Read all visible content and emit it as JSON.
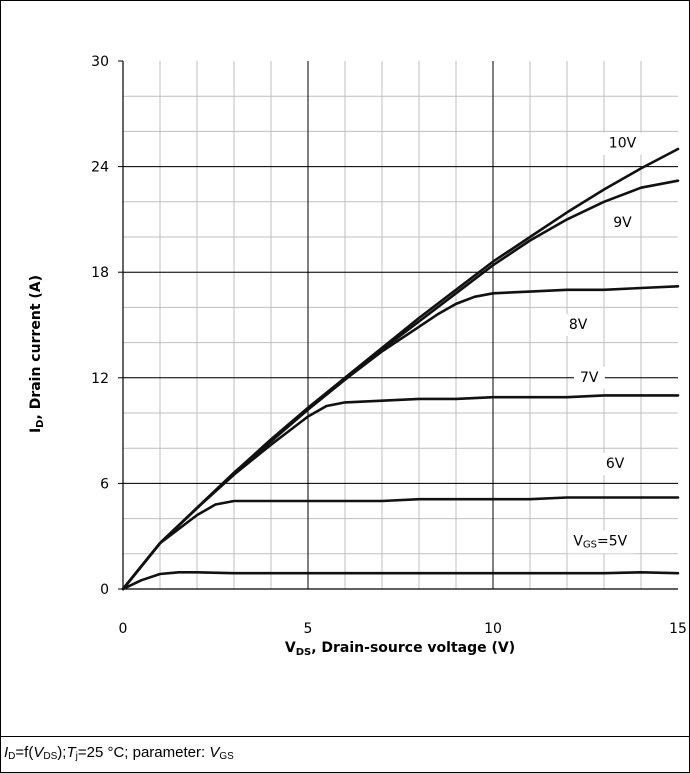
{
  "chart_data": {
    "type": "line",
    "xlabel": "V",
    "xlabel_sub": "DS",
    "xlabel_rest": ", Drain-source voltage (V)",
    "ylabel": "I",
    "ylabel_sub": "D",
    "ylabel_rest": ", Drain current (A)",
    "xlim": [
      0,
      15
    ],
    "ylim": [
      0,
      30
    ],
    "x_ticks": [
      0,
      5,
      10,
      15
    ],
    "y_ticks": [
      0,
      6,
      12,
      18,
      24,
      30
    ],
    "x_minor_step": 1,
    "y_minor_step": 2,
    "grid": true,
    "series": [
      {
        "name": "10V",
        "x": [
          0,
          1,
          2,
          3,
          4,
          5,
          6,
          7,
          8,
          9,
          10,
          11,
          12,
          13,
          14,
          15
        ],
        "y": [
          0,
          2.6,
          4.6,
          6.6,
          8.5,
          10.3,
          12.0,
          13.7,
          15.4,
          17.0,
          18.6,
          20.0,
          21.4,
          22.7,
          23.9,
          25.0
        ]
      },
      {
        "name": "9V",
        "x": [
          0,
          1,
          2,
          3,
          4,
          5,
          6,
          7,
          8,
          9,
          10,
          11,
          12,
          13,
          14,
          15
        ],
        "y": [
          0,
          2.6,
          4.6,
          6.6,
          8.4,
          10.2,
          11.9,
          13.6,
          15.2,
          16.8,
          18.4,
          19.8,
          21.0,
          22.0,
          22.8,
          23.2
        ]
      },
      {
        "name": "8V",
        "x": [
          0,
          1,
          2,
          3,
          4,
          5,
          6,
          7,
          8,
          8.5,
          9,
          9.5,
          10,
          11,
          12,
          13,
          14,
          15
        ],
        "y": [
          0,
          2.6,
          4.6,
          6.6,
          8.4,
          10.2,
          11.9,
          13.5,
          14.9,
          15.6,
          16.2,
          16.6,
          16.8,
          16.9,
          17.0,
          17.0,
          17.1,
          17.2
        ]
      },
      {
        "name": "7V",
        "x": [
          0,
          1,
          2,
          3,
          4,
          4.5,
          5,
          5.5,
          6,
          7,
          8,
          9,
          10,
          11,
          12,
          13,
          14,
          15
        ],
        "y": [
          0,
          2.6,
          4.6,
          6.5,
          8.2,
          9.0,
          9.8,
          10.4,
          10.6,
          10.7,
          10.8,
          10.8,
          10.9,
          10.9,
          10.9,
          11.0,
          11.0,
          11.0
        ]
      },
      {
        "name": "6V",
        "x": [
          0,
          1,
          2,
          2.5,
          3,
          3.5,
          4,
          5,
          6,
          7,
          8,
          9,
          10,
          11,
          12,
          13,
          14,
          15
        ],
        "y": [
          0,
          2.6,
          4.2,
          4.8,
          5.0,
          5.0,
          5.0,
          5.0,
          5.0,
          5.0,
          5.1,
          5.1,
          5.1,
          5.1,
          5.2,
          5.2,
          5.2,
          5.2
        ]
      },
      {
        "name": "VGS=5V",
        "x": [
          0,
          0.5,
          1,
          1.5,
          2,
          3,
          5,
          8,
          10,
          12,
          13,
          14,
          15
        ],
        "y": [
          0,
          0.5,
          0.85,
          0.95,
          0.95,
          0.9,
          0.9,
          0.9,
          0.9,
          0.9,
          0.9,
          0.95,
          0.9
        ]
      }
    ],
    "labels": [
      {
        "text": "10V",
        "x": 13.5,
        "y": 25.3
      },
      {
        "text": "9V",
        "x": 13.5,
        "y": 20.8
      },
      {
        "text": "8V",
        "x": 12.3,
        "y": 15.0
      },
      {
        "text": "7V",
        "x": 12.6,
        "y": 12.0
      },
      {
        "text": "6V",
        "x": 13.3,
        "y": 7.1
      },
      {
        "text": "VGS=5V",
        "x": 12.9,
        "y": 2.7
      }
    ]
  },
  "caption": {
    "i_letter": "I",
    "i_sub": "D",
    "eq1": "=f(",
    "v_letter": "V",
    "v_sub": "DS",
    "eq2": ");",
    "t_letter": "T",
    "t_sub": "j",
    "eq3": "=25 °C; parameter: ",
    "p_letter": "V",
    "p_sub": "GS"
  }
}
